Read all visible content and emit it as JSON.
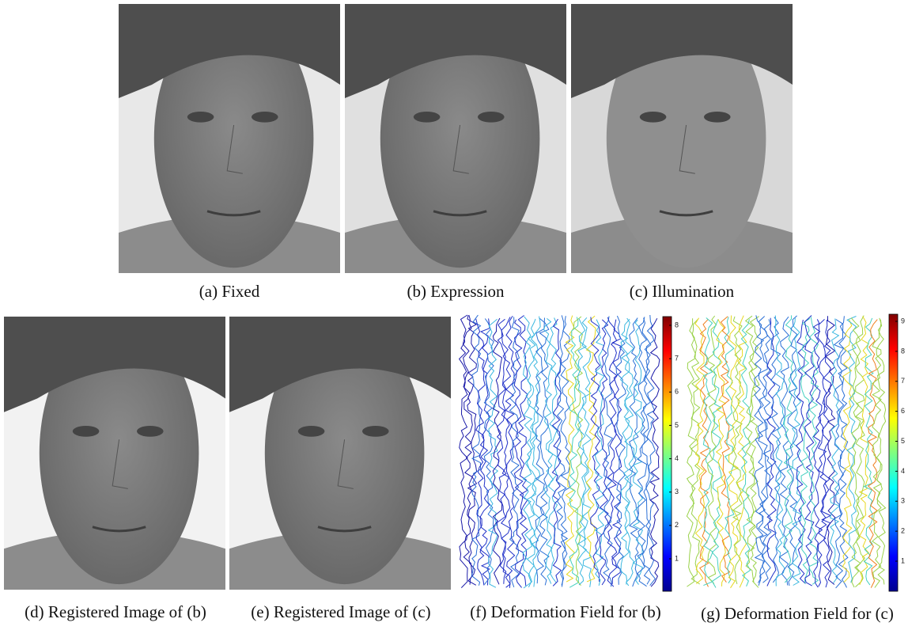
{
  "panels": [
    {
      "caption": "(a) Fixed"
    },
    {
      "caption": "(b) Expression"
    },
    {
      "caption": "(c) Illumination"
    },
    {
      "caption": "(d) Registered Image of (b)"
    },
    {
      "caption": "(e) Registered Image of (c)"
    },
    {
      "caption": "(f) Deformation Field for (b)"
    },
    {
      "caption": "(g) Deformation Field for (c)"
    }
  ],
  "colorbars": [
    {
      "ticks": [
        1,
        2,
        3,
        4,
        5,
        6,
        7,
        8
      ]
    },
    {
      "ticks": [
        1,
        2,
        3,
        4,
        5,
        6,
        7,
        8,
        9
      ]
    }
  ]
}
